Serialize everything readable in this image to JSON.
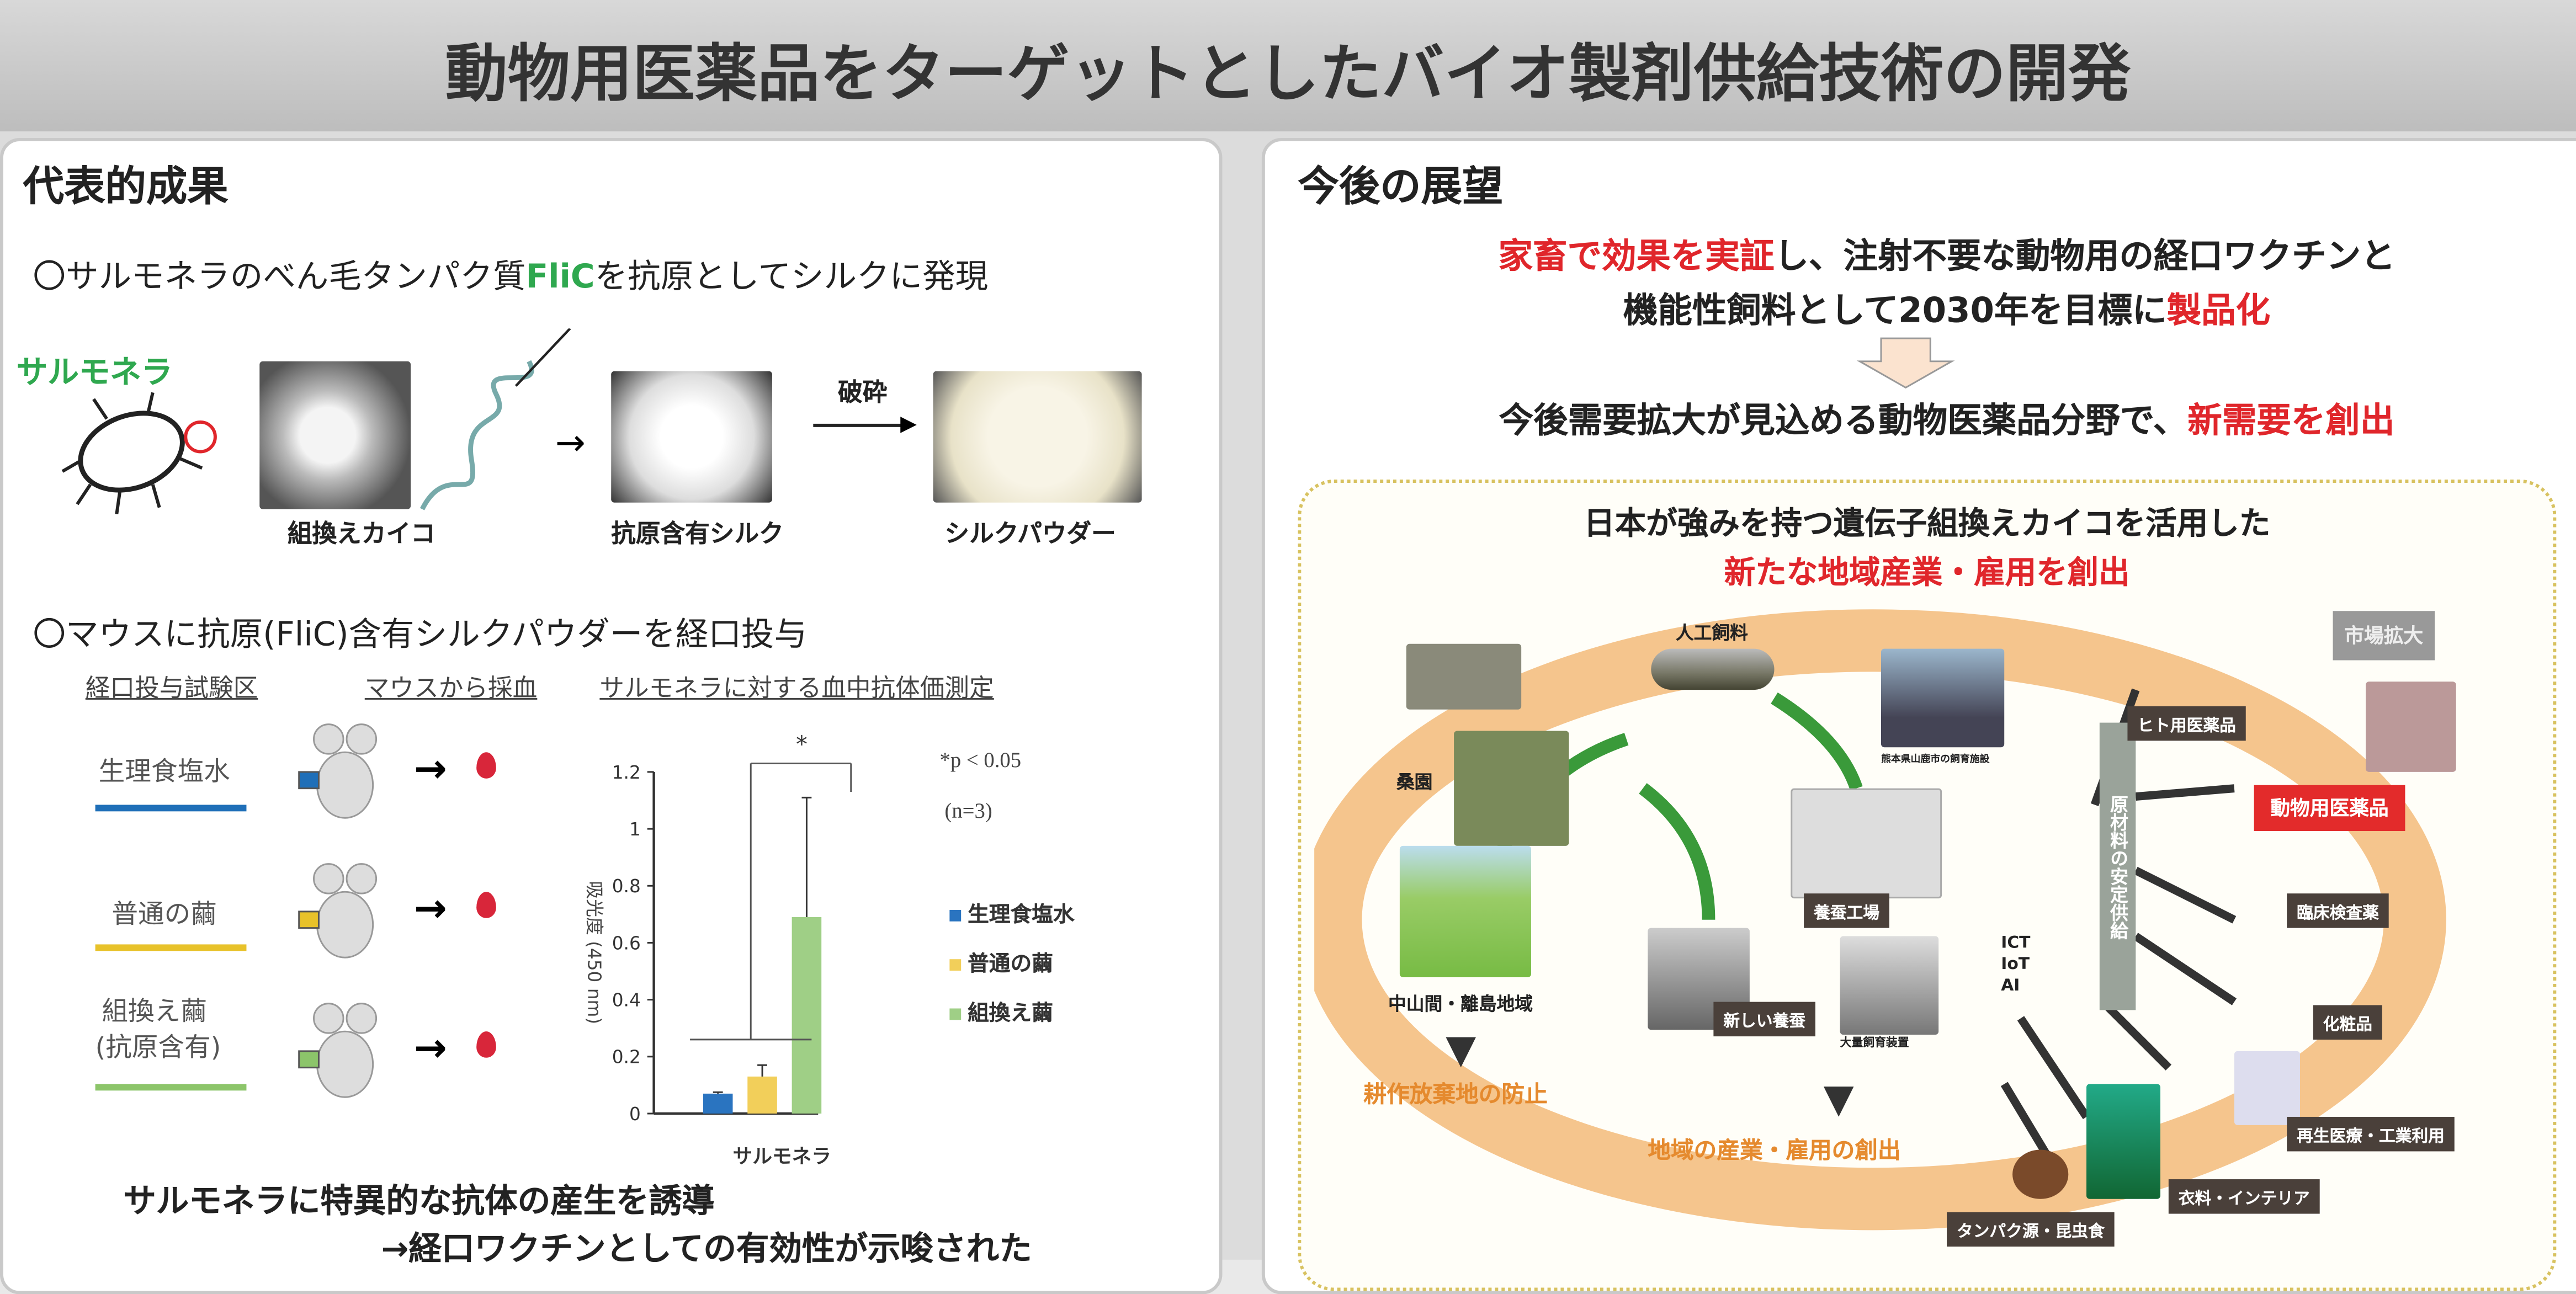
{
  "title": "動物用医薬品をターゲットとしたバイオ製剤供給技術の開発",
  "left": {
    "heading": "代表的成果",
    "point1": {
      "prefix": "〇サルモネラのべん毛タンパク質",
      "highlight": "FliC",
      "suffix": "を抗原としてシルクに発現"
    },
    "salmonella_label": "サルモネラ",
    "steps": [
      "組換えカイコ",
      "抗原含有シルク",
      "シルクパウダー"
    ],
    "crush_label": "破砕",
    "point2": "〇マウスに抗原(FliC)含有シルクパウダーを経口投与",
    "col_headers": [
      "経口投与試験区",
      "マウスから採血",
      "サルモネラに対する血中抗体価測定"
    ],
    "groups": [
      {
        "label": "生理食塩水",
        "color": "#1f6fb8"
      },
      {
        "label": "普通の繭",
        "color": "#e8c22a"
      },
      {
        "label": "組換え繭",
        "label2": "(抗原含有)",
        "color": "#8cc56a"
      }
    ],
    "pvalue": "*p < 0.05",
    "n": "(n=3)",
    "conclusion1": "サルモネラに特異的な抗体の産生を誘導",
    "conclusion2": "→経口ワクチンとしての有効性が示唆された"
  },
  "chart_data": {
    "type": "bar",
    "categories": [
      "サルモネラ"
    ],
    "series": [
      {
        "name": "生理食塩水",
        "values": [
          0.07
        ],
        "error": [
          0.005
        ],
        "color": "#2a74c0"
      },
      {
        "name": "普通の繭",
        "values": [
          0.13
        ],
        "error": [
          0.04
        ],
        "color": "#f2cf5a"
      },
      {
        "name": "組換え繭",
        "values": [
          0.69
        ],
        "error": [
          0.42
        ],
        "color": "#9fcf86"
      }
    ],
    "ylabel": "吸光度 (450 nm)",
    "ylim": [
      0,
      1.2
    ],
    "yticks": [
      "0",
      "0.2",
      "0.4",
      "0.6",
      "0.8",
      "1",
      "1.2"
    ],
    "significance": "*",
    "legend": "right",
    "grid": false
  },
  "right": {
    "heading": "今後の展望",
    "line1": {
      "red": "家畜で効果を実証",
      "rest": "し、注射不要な動物用の経口ワクチンと"
    },
    "line2": {
      "prefix": "機能性飼料として2030年を目標に",
      "red": "製品化"
    },
    "line3": {
      "prefix": "今後需要拡大が見込める動物医薬品分野で、",
      "red": "新需要を創出"
    },
    "box_title1": "日本が強みを持つ遺伝子組換えカイコを活用した",
    "box_title2": "新たな地域産業・雇用を創出",
    "diagram": {
      "artificial_feed": "人工飼料",
      "facility": "熊本県山鹿市の飼育施設",
      "mulberry": "桑園",
      "region": "中山間・離島地域",
      "abandon": "耕作放棄地の防止",
      "new_sericulture": "新しい養蚕",
      "mass_rearing": "大量飼育装置",
      "factory": "養蚕工場",
      "ict": "ICT",
      "iot": "IoT",
      "ai": "AI",
      "regional": "地域の産業・雇用の創出",
      "supply": "原材料の安定供給",
      "market": "市場拡大",
      "human_med": "ヒト用医薬品",
      "animal_med": "動物用医薬品",
      "clinical": "臨床検査薬",
      "cosmetics": "化粧品",
      "regen": "再生医療・工業利用",
      "clothing": "衣料・インテリア",
      "protein": "タンパク源・昆虫食"
    }
  }
}
